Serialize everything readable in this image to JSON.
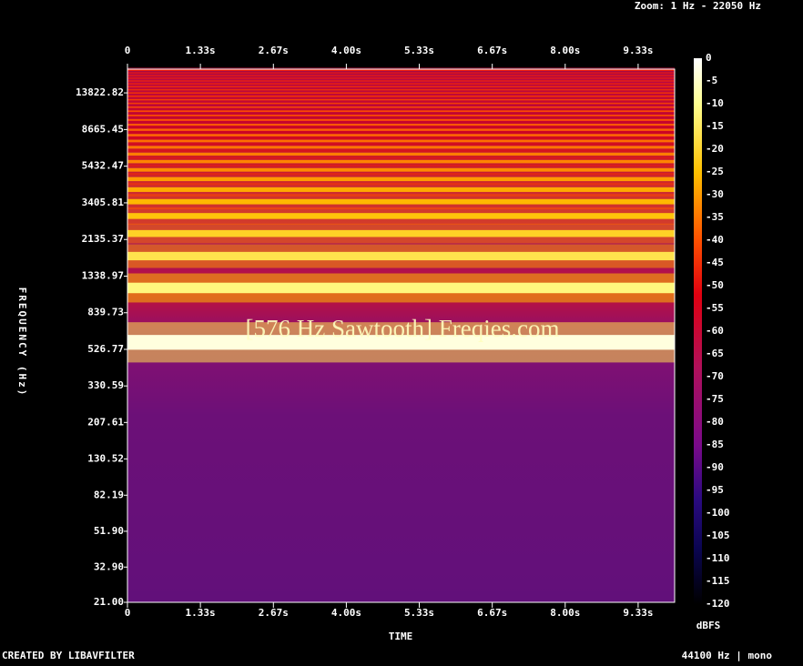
{
  "chart_data": {
    "type": "spectrogram",
    "zoom_label": "Zoom: 1 Hz - 22050 Hz",
    "annotation": "[576 Hz Sawtooth] Freqies.com",
    "x_label": "TIME",
    "y_label": "FREQUENCY (Hz)",
    "footer_left": "CREATED BY LIBAVFILTER",
    "footer_right": "44100 Hz | mono",
    "xlim": [
      0,
      10
    ],
    "xticks": [
      0,
      {
        "value": 1.333,
        "label": "1.33s"
      },
      {
        "value": 2.667,
        "label": "2.67s"
      },
      {
        "value": 4,
        "label": "4.00s"
      },
      {
        "value": 5.333,
        "label": "5.33s"
      },
      {
        "value": 6.667,
        "label": "6.67s"
      },
      {
        "value": 8,
        "label": "8.00s"
      },
      {
        "value": 9.333,
        "label": "9.33s"
      }
    ],
    "ylim": [
      21,
      18700
    ],
    "log_y": true,
    "yticks": [
      {
        "value": 21,
        "label": "21.00"
      },
      {
        "value": 32.9,
        "label": "32.90"
      },
      {
        "value": 51.9,
        "label": "51.90"
      },
      82.19,
      130.52,
      207.61,
      330.59,
      526.77,
      839.73,
      1338.97,
      2135.37,
      3405.81,
      5432.47,
      8665.45,
      13822.82
    ],
    "harmonics": {
      "frequencies": [
        576,
        1152,
        1728,
        2304,
        2880,
        3456,
        4032,
        4608,
        5184,
        5760,
        6336,
        6912,
        7488,
        8064,
        8640,
        9216,
        9792,
        10368,
        10944,
        11520,
        12096,
        12672,
        13248,
        13824,
        14400,
        14976,
        15552,
        16128,
        16704,
        17280,
        17856,
        18432
      ],
      "levels": [
        -3,
        -12,
        -17,
        -21,
        -24,
        -26,
        -28,
        -30,
        -32,
        -33,
        -34,
        -35,
        -36,
        -37,
        -38,
        -39,
        -40,
        -41,
        -41,
        -42,
        -43,
        -43,
        -44,
        -44,
        -45,
        -45,
        -46,
        -46,
        -47,
        -47,
        -48,
        -48
      ]
    },
    "colorbar": {
      "label": "dBFS",
      "lim": [
        -120,
        0
      ],
      "ticks": [
        0,
        -5,
        -10,
        -15,
        -20,
        -25,
        -30,
        -35,
        -40,
        -45,
        -50,
        -55,
        -60,
        -65,
        -70,
        -75,
        -80,
        -85,
        -90,
        -95,
        -100,
        -105,
        -110,
        -115,
        -120
      ],
      "stops": [
        {
          "value": 0,
          "color": "#ffffff"
        },
        {
          "value": -10,
          "color": "#ffff90"
        },
        {
          "value": -25,
          "color": "#ffc000"
        },
        {
          "value": -40,
          "color": "#ff5000"
        },
        {
          "value": -52,
          "color": "#e00010"
        },
        {
          "value": -68,
          "color": "#b0105a"
        },
        {
          "value": -85,
          "color": "#7a0a8a"
        },
        {
          "value": -97,
          "color": "#2a0a80"
        },
        {
          "value": -108,
          "color": "#0a0550"
        },
        {
          "value": -120,
          "color": "#000000"
        }
      ]
    }
  }
}
